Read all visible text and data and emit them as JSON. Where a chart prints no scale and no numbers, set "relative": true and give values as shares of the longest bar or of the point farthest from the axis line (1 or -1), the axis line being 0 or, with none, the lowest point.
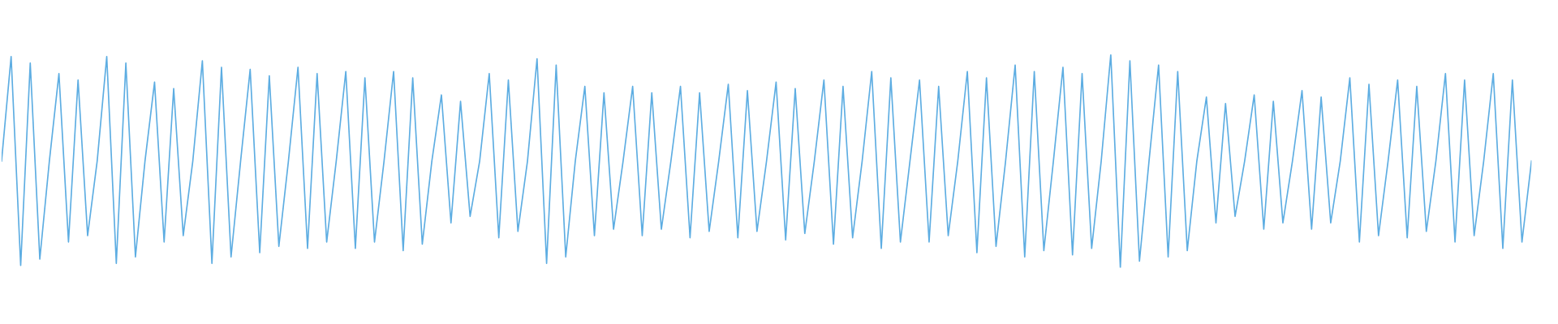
{
  "chart_data": {
    "type": "line",
    "relative": true,
    "color": "#5dade2",
    "categories": [
      null,
      null,
      null,
      null,
      null,
      null,
      null,
      null,
      null,
      null,
      null,
      null,
      null,
      null,
      null,
      null,
      null,
      null,
      null,
      null,
      null,
      null,
      null,
      null,
      null,
      null,
      null,
      null,
      null,
      null,
      null,
      null,
      null,
      null,
      null,
      null,
      null,
      null,
      null,
      null,
      null,
      null,
      null,
      null,
      null,
      null,
      null,
      null,
      null,
      null,
      null,
      null,
      null,
      null,
      null,
      null,
      null,
      null,
      null,
      null,
      null,
      null,
      null,
      null,
      null,
      null,
      null,
      null,
      null,
      null,
      null,
      null,
      null,
      null,
      null,
      null,
      null,
      null,
      null,
      null,
      null,
      null,
      null,
      null,
      null,
      null,
      null,
      null,
      null,
      null,
      null,
      null,
      null,
      null,
      null,
      null,
      null,
      null,
      null,
      null,
      null,
      null,
      null,
      null,
      null,
      null,
      null,
      null,
      null,
      null,
      null,
      null,
      null,
      null,
      null,
      null,
      null,
      null,
      null,
      null,
      null,
      null,
      null,
      null,
      null,
      null,
      null,
      null,
      null,
      null,
      null,
      null,
      null,
      null,
      null,
      null,
      null,
      null,
      null,
      null,
      null,
      null,
      null,
      null,
      null,
      null,
      null,
      null,
      null,
      null,
      null,
      null,
      null,
      null,
      null,
      null,
      null,
      null,
      null,
      null,
      null
    ],
    "values": [
      0.5,
      0.99,
      0.01,
      0.96,
      0.04,
      0.5,
      0.91,
      0.12,
      0.88,
      0.15,
      0.5,
      0.99,
      0.02,
      0.96,
      0.05,
      0.5,
      0.87,
      0.12,
      0.84,
      0.15,
      0.5,
      0.97,
      0.02,
      0.94,
      0.05,
      0.5,
      0.93,
      0.07,
      0.9,
      0.1,
      0.5,
      0.94,
      0.09,
      0.91,
      0.12,
      0.5,
      0.92,
      0.09,
      0.89,
      0.12,
      0.5,
      0.92,
      0.08,
      0.89,
      0.11,
      0.5,
      0.81,
      0.21,
      0.78,
      0.24,
      0.5,
      0.91,
      0.14,
      0.88,
      0.17,
      0.5,
      0.98,
      0.02,
      0.95,
      0.05,
      0.5,
      0.85,
      0.15,
      0.82,
      0.18,
      0.5,
      0.85,
      0.15,
      0.82,
      0.18,
      0.5,
      0.85,
      0.14,
      0.82,
      0.17,
      0.5,
      0.86,
      0.14,
      0.83,
      0.17,
      0.5,
      0.87,
      0.13,
      0.84,
      0.16,
      0.5,
      0.88,
      0.11,
      0.85,
      0.14,
      0.5,
      0.92,
      0.09,
      0.89,
      0.12,
      0.5,
      0.88,
      0.12,
      0.85,
      0.15,
      0.5,
      0.92,
      0.07,
      0.89,
      0.1,
      0.5,
      0.95,
      0.05,
      0.92,
      0.08,
      0.5,
      0.94,
      0.06,
      0.91,
      0.09,
      0.5,
      1,
      0,
      0.97,
      0.03,
      0.5,
      0.95,
      0.05,
      0.92,
      0.08,
      0.5,
      0.8,
      0.21,
      0.77,
      0.24,
      0.5,
      0.81,
      0.18,
      0.78,
      0.21,
      0.5,
      0.83,
      0.18,
      0.8,
      0.21,
      0.5,
      0.89,
      0.12,
      0.86,
      0.15,
      0.5,
      0.88,
      0.14,
      0.85,
      0.17,
      0.5,
      0.91,
      0.12,
      0.88,
      0.15,
      0.5,
      0.91,
      0.09,
      0.88,
      0.12,
      0.5
    ]
  }
}
